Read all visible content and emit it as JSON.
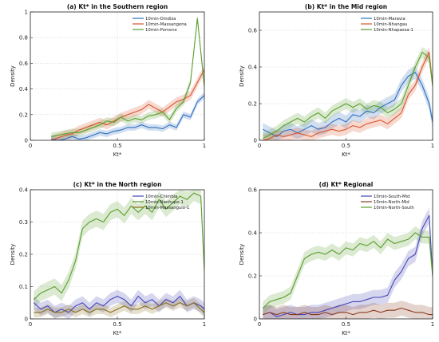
{
  "chart_data": [
    {
      "type": "line",
      "title": "(a) Kt* in the Southern region",
      "xlabel": "Kt*",
      "ylabel": "Density",
      "xlim": [
        0,
        1
      ],
      "ylim": [
        0,
        1
      ],
      "xticks": [
        0,
        0.5,
        1
      ],
      "yticks": [
        0,
        0.2,
        0.4,
        0.6,
        0.8,
        1
      ],
      "xtick_labels": [
        "0",
        "0.5",
        "1"
      ],
      "ytick_labels": [
        "0",
        "0.2",
        "0.4",
        "0.6",
        "0.8",
        "1"
      ],
      "grid": true,
      "legend": "top-right",
      "x": [
        0.12,
        0.16,
        0.2,
        0.24,
        0.28,
        0.32,
        0.36,
        0.4,
        0.44,
        0.48,
        0.52,
        0.56,
        0.6,
        0.64,
        0.68,
        0.72,
        0.76,
        0.8,
        0.84,
        0.88,
        0.92,
        0.96,
        1.0
      ],
      "series": [
        {
          "name": "10min-Dindiza",
          "color": "#2f6fbf",
          "band": 0.025,
          "values": [
            0.01,
            0.0,
            0.01,
            0.03,
            0.01,
            0.02,
            0.04,
            0.06,
            0.05,
            0.07,
            0.08,
            0.1,
            0.1,
            0.12,
            0.1,
            0.1,
            0.09,
            0.12,
            0.1,
            0.2,
            0.18,
            0.3,
            0.35
          ]
        },
        {
          "name": "10min-Massangena",
          "color": "#d9532b",
          "band": 0.035,
          "values": [
            0.0,
            0.02,
            0.04,
            0.05,
            0.08,
            0.1,
            0.12,
            0.14,
            0.12,
            0.15,
            0.18,
            0.2,
            0.22,
            0.24,
            0.28,
            0.25,
            0.22,
            0.26,
            0.3,
            0.32,
            0.35,
            0.45,
            0.55
          ]
        },
        {
          "name": "10min-Pomene",
          "color": "#5a9e2e",
          "band": 0.03,
          "values": [
            0.03,
            0.04,
            0.05,
            0.06,
            0.06,
            0.08,
            0.1,
            0.12,
            0.15,
            0.14,
            0.18,
            0.15,
            0.17,
            0.16,
            0.19,
            0.2,
            0.22,
            0.16,
            0.25,
            0.3,
            0.45,
            0.95,
            0.42
          ]
        }
      ]
    },
    {
      "type": "line",
      "title": "(b) Kt* in the Mid region",
      "xlabel": "Kt*",
      "ylabel": "Density",
      "xlim": [
        0,
        1
      ],
      "ylim": [
        0,
        0.7
      ],
      "xticks": [
        0,
        0.5,
        1
      ],
      "yticks": [
        0,
        0.2,
        0.4,
        0.6
      ],
      "xtick_labels": [
        "0",
        "0.5",
        "1"
      ],
      "ytick_labels": [
        "0",
        "0.2",
        "0.4",
        "0.6"
      ],
      "grid": true,
      "legend": "top-right",
      "x": [
        0.02,
        0.06,
        0.1,
        0.14,
        0.18,
        0.22,
        0.26,
        0.3,
        0.34,
        0.38,
        0.42,
        0.46,
        0.5,
        0.54,
        0.58,
        0.62,
        0.66,
        0.7,
        0.74,
        0.78,
        0.82,
        0.86,
        0.9,
        0.94,
        0.98,
        1.0
      ],
      "series": [
        {
          "name": "10min-Maravia",
          "color": "#2f6fbf",
          "band": 0.035,
          "values": [
            0.06,
            0.04,
            0.02,
            0.05,
            0.06,
            0.04,
            0.06,
            0.08,
            0.06,
            0.07,
            0.1,
            0.12,
            0.1,
            0.14,
            0.13,
            0.16,
            0.15,
            0.18,
            0.2,
            0.22,
            0.3,
            0.35,
            0.37,
            0.3,
            0.2,
            0.1
          ]
        },
        {
          "name": "10min-Nhangau",
          "color": "#d9532b",
          "band": 0.03,
          "values": [
            0.0,
            0.01,
            0.03,
            0.02,
            0.03,
            0.04,
            0.03,
            0.02,
            0.04,
            0.05,
            0.06,
            0.05,
            0.06,
            0.08,
            0.07,
            0.09,
            0.1,
            0.11,
            0.09,
            0.12,
            0.15,
            0.25,
            0.3,
            0.4,
            0.48,
            0.3
          ]
        },
        {
          "name": "10min-Nhapassa-1",
          "color": "#5a9e2e",
          "band": 0.03,
          "values": [
            0.01,
            0.03,
            0.05,
            0.08,
            0.1,
            0.12,
            0.1,
            0.13,
            0.15,
            0.12,
            0.16,
            0.18,
            0.2,
            0.18,
            0.2,
            0.17,
            0.19,
            0.18,
            0.15,
            0.17,
            0.2,
            0.3,
            0.4,
            0.48,
            0.45,
            0.3
          ]
        }
      ]
    },
    {
      "type": "line",
      "title": "(c) Kt* in the North region",
      "xlabel": "Kt*",
      "ylabel": "Density",
      "xlim": [
        0,
        1
      ],
      "ylim": [
        0,
        0.4
      ],
      "xticks": [
        0,
        0.5,
        1
      ],
      "yticks": [
        0,
        0.1,
        0.2,
        0.3,
        0.4
      ],
      "xtick_labels": [
        "0",
        "0.5",
        "1"
      ],
      "ytick_labels": [
        "0",
        "0.1",
        "0.2",
        "0.3",
        "0.4"
      ],
      "grid": true,
      "legend": "top-right",
      "x": [
        0.02,
        0.06,
        0.1,
        0.14,
        0.18,
        0.22,
        0.26,
        0.3,
        0.34,
        0.38,
        0.42,
        0.46,
        0.5,
        0.54,
        0.58,
        0.62,
        0.66,
        0.7,
        0.74,
        0.78,
        0.82,
        0.86,
        0.9,
        0.94,
        0.98,
        1.0
      ],
      "series": [
        {
          "name": "10min-Chimbia",
          "color": "#4646b8",
          "band": 0.02,
          "values": [
            0.05,
            0.03,
            0.04,
            0.02,
            0.03,
            0.02,
            0.04,
            0.05,
            0.03,
            0.05,
            0.04,
            0.06,
            0.07,
            0.06,
            0.04,
            0.07,
            0.05,
            0.06,
            0.04,
            0.06,
            0.05,
            0.07,
            0.04,
            0.05,
            0.04,
            0.03
          ]
        },
        {
          "name": "10min-Nanhupo-1",
          "color": "#5a9e2e",
          "band": 0.025,
          "values": [
            0.06,
            0.08,
            0.09,
            0.1,
            0.08,
            0.12,
            0.18,
            0.28,
            0.3,
            0.31,
            0.3,
            0.33,
            0.34,
            0.32,
            0.35,
            0.33,
            0.35,
            0.33,
            0.37,
            0.34,
            0.36,
            0.38,
            0.37,
            0.39,
            0.38,
            0.15
          ]
        },
        {
          "name": "10min-Massangulo-1",
          "color": "#8a6d1e",
          "band": 0.015,
          "values": [
            0.02,
            0.02,
            0.03,
            0.02,
            0.02,
            0.03,
            0.02,
            0.03,
            0.02,
            0.03,
            0.03,
            0.02,
            0.03,
            0.04,
            0.03,
            0.03,
            0.04,
            0.03,
            0.04,
            0.05,
            0.04,
            0.05,
            0.04,
            0.05,
            0.03,
            0.02
          ]
        }
      ]
    },
    {
      "type": "line",
      "title": "(d) Kt* Regional",
      "xlabel": "Kt*",
      "ylabel": "Density",
      "xlim": [
        0,
        1
      ],
      "ylim": [
        0,
        0.6
      ],
      "xticks": [
        0,
        0.5,
        1
      ],
      "yticks": [
        0,
        0.2,
        0.4,
        0.6
      ],
      "xtick_labels": [
        "0",
        "0.5",
        "1"
      ],
      "ytick_labels": [
        "0",
        "0.2",
        "0.4",
        "0.6"
      ],
      "grid": true,
      "legend": "top-right",
      "x": [
        0.02,
        0.06,
        0.1,
        0.14,
        0.18,
        0.22,
        0.26,
        0.3,
        0.34,
        0.38,
        0.42,
        0.46,
        0.5,
        0.54,
        0.58,
        0.62,
        0.66,
        0.7,
        0.74,
        0.78,
        0.82,
        0.86,
        0.9,
        0.94,
        0.98,
        1.0
      ],
      "series": [
        {
          "name": "10min-South-Mid",
          "color": "#4646b8",
          "band": 0.035,
          "values": [
            0.02,
            0.03,
            0.01,
            0.02,
            0.03,
            0.02,
            0.02,
            0.03,
            0.03,
            0.04,
            0.05,
            0.06,
            0.07,
            0.08,
            0.08,
            0.09,
            0.1,
            0.1,
            0.11,
            0.18,
            0.22,
            0.28,
            0.3,
            0.42,
            0.48,
            0.2
          ]
        },
        {
          "name": "10min-North-Mid",
          "color": "#8a3a1e",
          "band": 0.035,
          "values": [
            0.02,
            0.03,
            0.02,
            0.03,
            0.02,
            0.02,
            0.03,
            0.02,
            0.02,
            0.03,
            0.02,
            0.03,
            0.03,
            0.02,
            0.03,
            0.03,
            0.04,
            0.03,
            0.04,
            0.04,
            0.05,
            0.04,
            0.03,
            0.03,
            0.02,
            0.02
          ]
        },
        {
          "name": "10min-North-South",
          "color": "#5a9e2e",
          "band": 0.03,
          "values": [
            0.05,
            0.08,
            0.09,
            0.1,
            0.12,
            0.2,
            0.28,
            0.3,
            0.31,
            0.3,
            0.32,
            0.3,
            0.33,
            0.32,
            0.35,
            0.34,
            0.36,
            0.33,
            0.37,
            0.35,
            0.36,
            0.37,
            0.4,
            0.38,
            0.38,
            0.2
          ]
        }
      ]
    }
  ]
}
